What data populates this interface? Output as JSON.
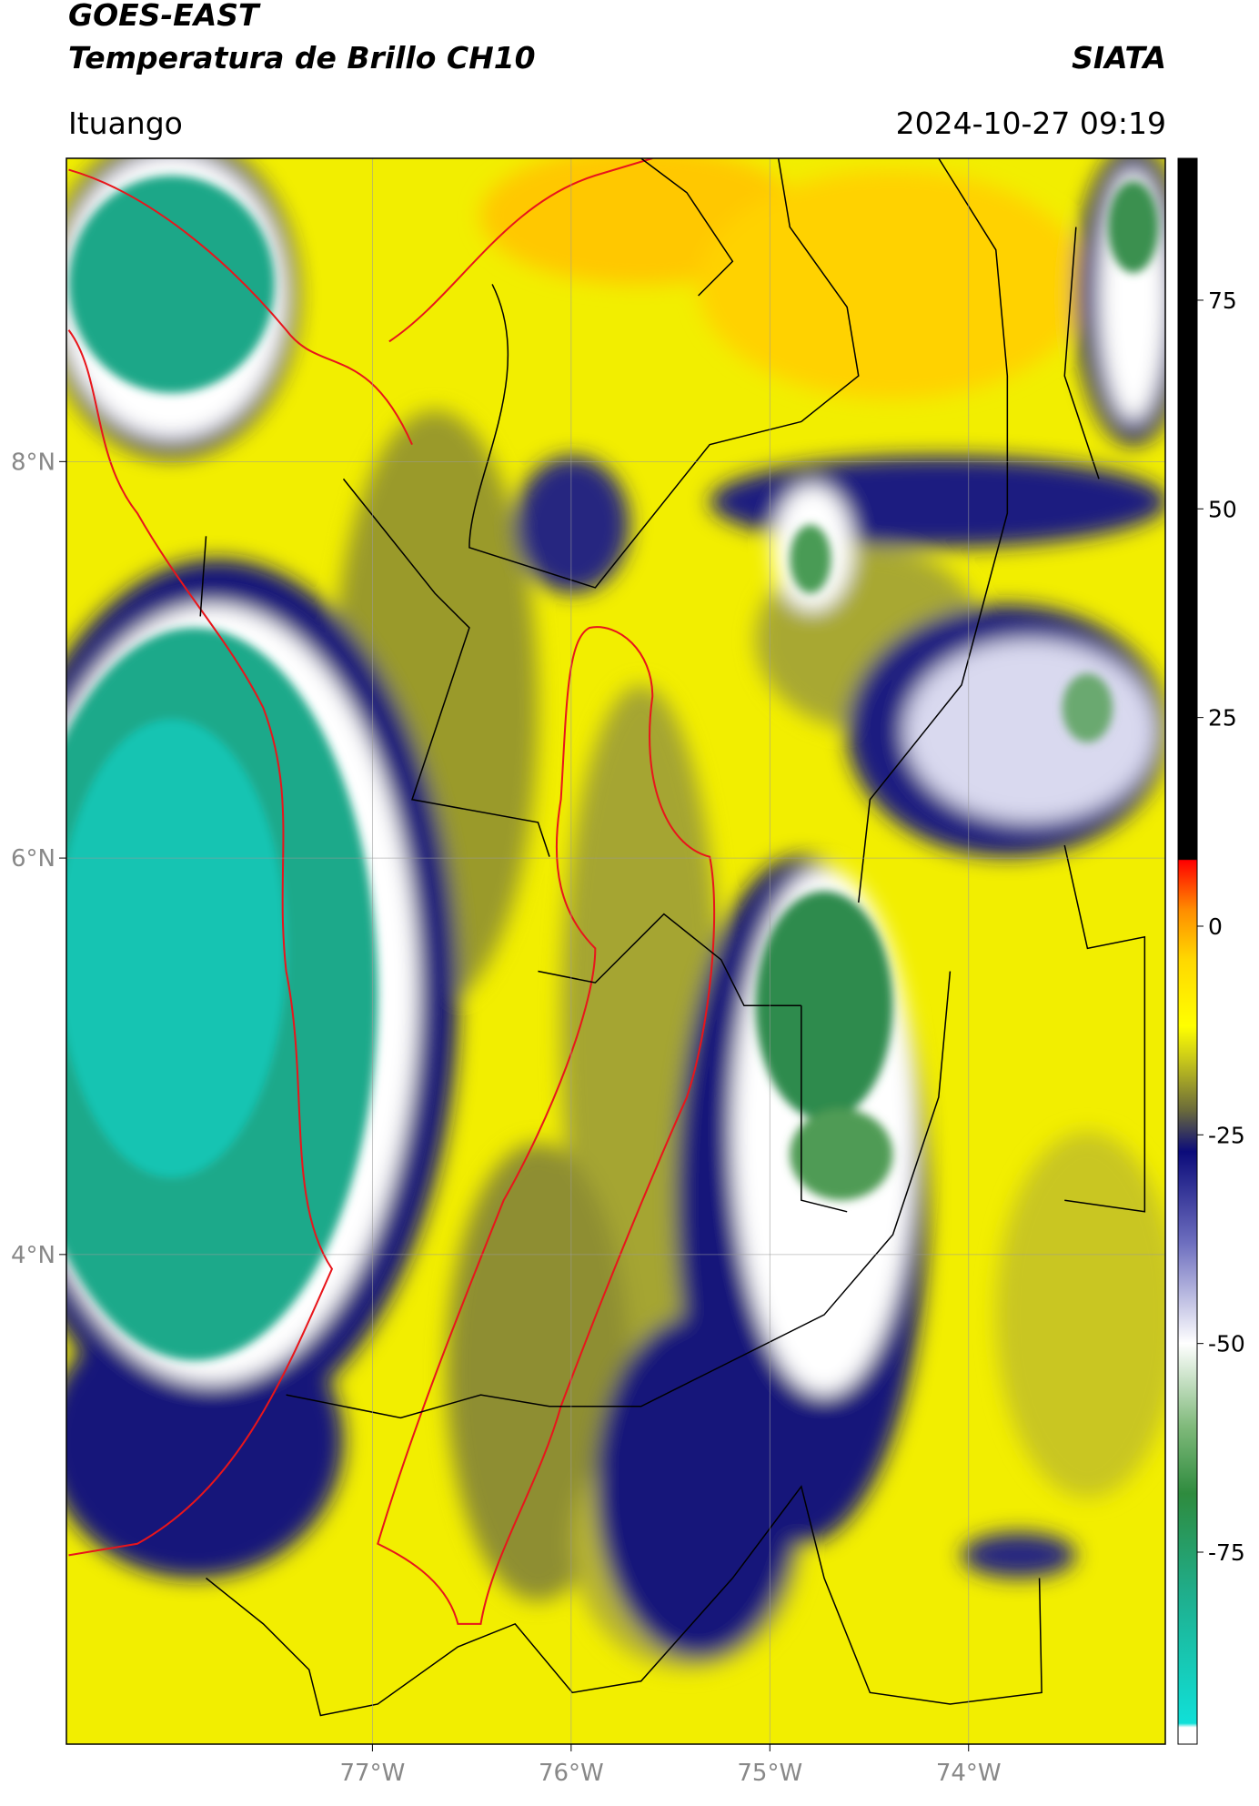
{
  "header": {
    "title": "GOES-EAST",
    "subtitle": "Temperatura de Brillo CH10",
    "brand": "SIATA",
    "region": "Ituango",
    "timestamp": "2024-10-27 09:19"
  },
  "map": {
    "xlim": [
      -78.54,
      -73.01
    ],
    "ylim": [
      1.53,
      9.53
    ],
    "xticks": [
      {
        "value": -77,
        "label": "77°W"
      },
      {
        "value": -76,
        "label": "76°W"
      },
      {
        "value": -75,
        "label": "75°W"
      },
      {
        "value": -74,
        "label": "74°W"
      }
    ],
    "yticks": [
      {
        "value": 8,
        "label": "8°N"
      },
      {
        "value": 6,
        "label": "6°N"
      },
      {
        "value": 4,
        "label": "4°N"
      }
    ],
    "grid": true,
    "border_color": "#000000",
    "boundary_color": "#e8151b"
  },
  "colorbar": {
    "lim": [
      -98,
      92
    ],
    "ticks": [
      75,
      50,
      25,
      0,
      -25,
      -50,
      -75
    ],
    "stops": [
      {
        "value": -98,
        "color": "#ffffff"
      },
      {
        "value": -96,
        "color": "#ffffff"
      },
      {
        "value": -95.5,
        "color": "#10e0d8"
      },
      {
        "value": -80,
        "color": "#1fae8c"
      },
      {
        "value": -68,
        "color": "#2e8b3e"
      },
      {
        "value": -60,
        "color": "#7fb97a"
      },
      {
        "value": -50,
        "color": "#ffffff"
      },
      {
        "value": -38,
        "color": "#6e6fbf"
      },
      {
        "value": -27,
        "color": "#0b0b7a"
      },
      {
        "value": -22,
        "color": "#6b6b3a"
      },
      {
        "value": -16,
        "color": "#c8c81a"
      },
      {
        "value": -12,
        "color": "#ffff00"
      },
      {
        "value": -4,
        "color": "#ffd800"
      },
      {
        "value": 2,
        "color": "#ff8c00"
      },
      {
        "value": 7.9,
        "color": "#ff0000"
      },
      {
        "value": 8,
        "color": "#000000"
      },
      {
        "value": 92,
        "color": "#000000"
      }
    ]
  }
}
